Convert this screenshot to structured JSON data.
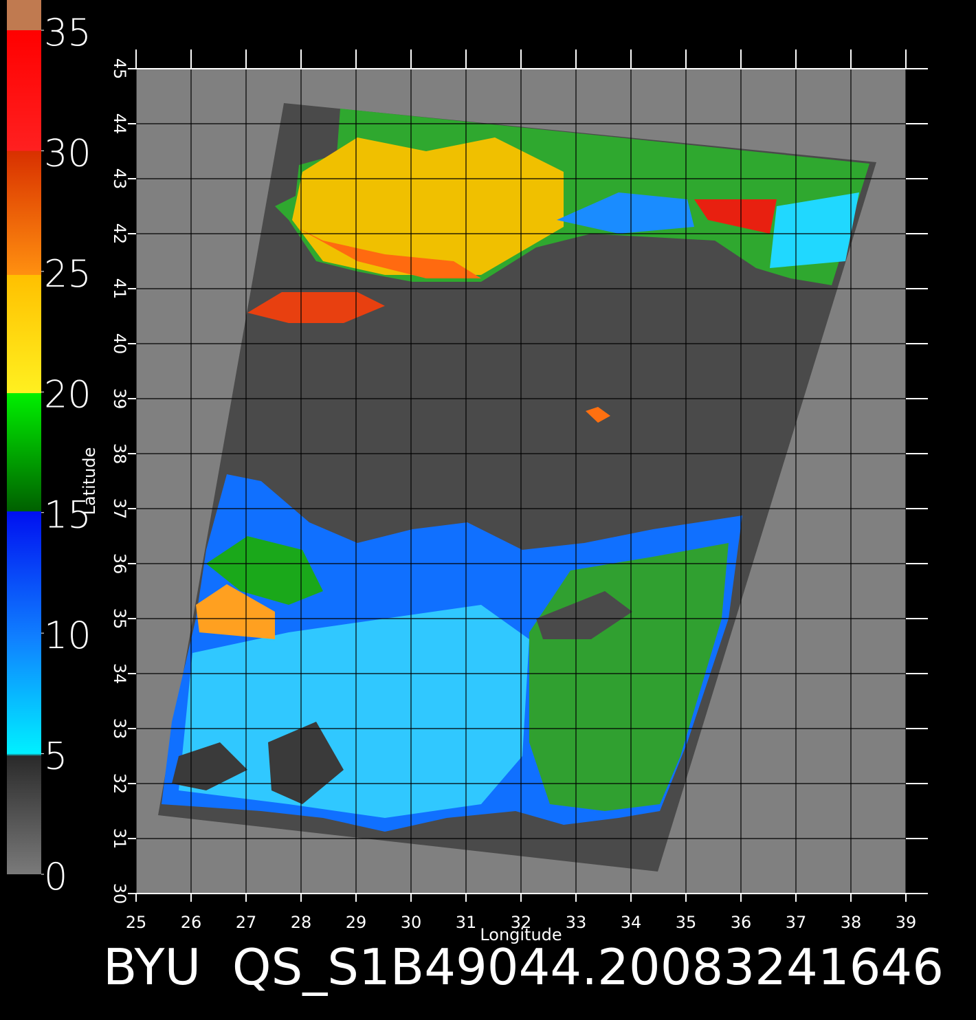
{
  "title": "BYU  QS_S1B49044.20083241646",
  "colorbar": {
    "range": [
      0,
      35
    ],
    "ticks": [
      0,
      5,
      10,
      15,
      20,
      25,
      30,
      35
    ]
  },
  "axes": {
    "xlabel": "Longitude",
    "ylabel": "Latitude",
    "xlim": [
      25,
      39
    ],
    "ylim": [
      30,
      45
    ],
    "xticks": [
      25,
      26,
      27,
      28,
      29,
      30,
      31,
      32,
      33,
      34,
      35,
      36,
      37,
      38,
      39
    ],
    "yticks": [
      30,
      31,
      32,
      33,
      34,
      35,
      36,
      37,
      38,
      39,
      40,
      41,
      42,
      43,
      44,
      45
    ]
  }
}
